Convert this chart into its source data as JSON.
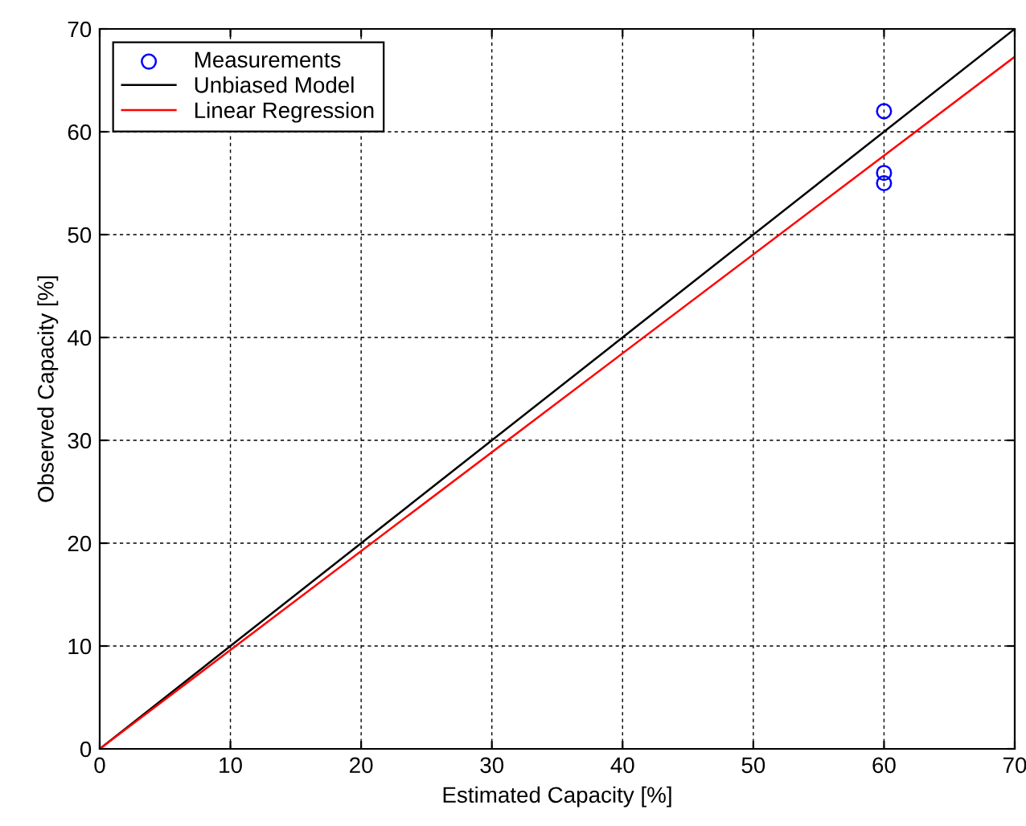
{
  "chart_data": {
    "type": "scatter",
    "xlabel": "Estimated Capacity [%]",
    "ylabel": "Observed Capacity [%]",
    "xlim": [
      0,
      70
    ],
    "ylim": [
      0,
      70
    ],
    "xticks": [
      0,
      10,
      20,
      30,
      40,
      50,
      60,
      70
    ],
    "yticks": [
      0,
      10,
      20,
      30,
      40,
      50,
      60,
      70
    ],
    "grid": true,
    "legend": "top left",
    "series": [
      {
        "name": "Measurements",
        "marker": "circle",
        "color": "#0000ff",
        "x": [
          60,
          60,
          60
        ],
        "values": [
          62,
          56,
          55
        ]
      },
      {
        "name": "Unbiased Model",
        "type": "line",
        "color": "#000000",
        "x": [
          0,
          70
        ],
        "values": [
          0,
          70
        ]
      },
      {
        "name": "Linear Regression",
        "type": "line",
        "color": "#ff0000",
        "x": [
          0,
          70
        ],
        "values": [
          0,
          67.3
        ]
      }
    ]
  }
}
